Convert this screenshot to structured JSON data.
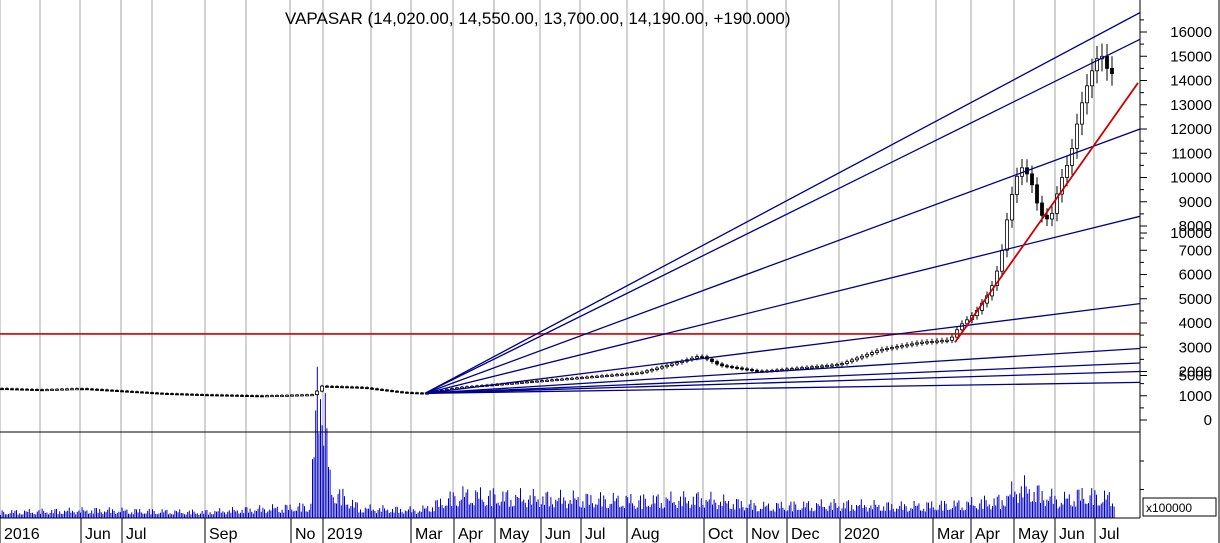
{
  "chart_data": {
    "type": "candlestick",
    "title": "VAPASAR (14,020.00, 14,550.00, 13,700.00, 14,190.00, +190.000)",
    "y_ticks": [
      16000,
      15000,
      14000,
      13000,
      12000,
      11000,
      10000,
      9000,
      8000,
      7000,
      6000,
      5000,
      4000,
      3000,
      2000,
      1000,
      0
    ],
    "ylim": [
      0,
      16800
    ],
    "volume_ticks": [
      10000,
      5000
    ],
    "volume_unit": "x100000",
    "x_labels": [
      "2016",
      "Jun",
      "Jul",
      "Sep",
      "No",
      "2019",
      "Mar",
      "Apr",
      "May",
      "Jun",
      "Jul",
      "Aug",
      "Oct",
      "Nov",
      "Dec",
      "2020",
      "Mar",
      "Apr",
      "May",
      "Jun",
      "Jul"
    ],
    "price_path": [
      [
        0,
        1300
      ],
      [
        40,
        1250
      ],
      [
        80,
        1300
      ],
      [
        120,
        1200
      ],
      [
        160,
        1100
      ],
      [
        200,
        1050
      ],
      [
        260,
        1000
      ],
      [
        315,
        1050
      ],
      [
        320,
        1400
      ],
      [
        360,
        1350
      ],
      [
        400,
        1150
      ],
      [
        425,
        1100
      ],
      [
        460,
        1350
      ],
      [
        520,
        1550
      ],
      [
        580,
        1750
      ],
      [
        640,
        1950
      ],
      [
        680,
        2400
      ],
      [
        700,
        2650
      ],
      [
        720,
        2250
      ],
      [
        760,
        2000
      ],
      [
        800,
        2150
      ],
      [
        840,
        2300
      ],
      [
        860,
        2600
      ],
      [
        880,
        2900
      ],
      [
        920,
        3200
      ],
      [
        950,
        3300
      ],
      [
        960,
        3900
      ],
      [
        975,
        4400
      ],
      [
        990,
        5300
      ],
      [
        1000,
        6500
      ],
      [
        1010,
        9000
      ],
      [
        1020,
        10500
      ],
      [
        1030,
        10000
      ],
      [
        1040,
        8500
      ],
      [
        1050,
        8200
      ],
      [
        1060,
        9800
      ],
      [
        1070,
        10800
      ],
      [
        1080,
        12800
      ],
      [
        1090,
        14200
      ],
      [
        1100,
        15200
      ],
      [
        1108,
        14400
      ],
      [
        1115,
        14190
      ]
    ],
    "reference_level": 3550,
    "gann_fan": {
      "origin_x": 425,
      "origin_value": 1100,
      "end_values_at_right_edge": [
        16800,
        15700,
        12000,
        8400,
        4800,
        2950,
        2350,
        2000,
        1550
      ]
    },
    "trendline": {
      "from": [
        955,
        3200
      ],
      "to": [
        1138,
        13900
      ]
    },
    "volume_path": [
      [
        0,
        300
      ],
      [
        100,
        400
      ],
      [
        200,
        300
      ],
      [
        310,
        600
      ],
      [
        320,
        8800
      ],
      [
        330,
        1500
      ],
      [
        360,
        500
      ],
      [
        420,
        400
      ],
      [
        460,
        1200
      ],
      [
        500,
        1100
      ],
      [
        560,
        1000
      ],
      [
        640,
        900
      ],
      [
        700,
        1000
      ],
      [
        760,
        600
      ],
      [
        840,
        700
      ],
      [
        900,
        600
      ],
      [
        960,
        700
      ],
      [
        1000,
        900
      ],
      [
        1020,
        1600
      ],
      [
        1060,
        900
      ],
      [
        1080,
        1200
      ],
      [
        1115,
        1000
      ]
    ],
    "colors": {
      "fan": "#00008b",
      "reference_line": "#cc0000",
      "trendline": "#cc0000",
      "candle": "#000000",
      "volume": "#0000cc",
      "grid": "#b4b4b4"
    }
  }
}
